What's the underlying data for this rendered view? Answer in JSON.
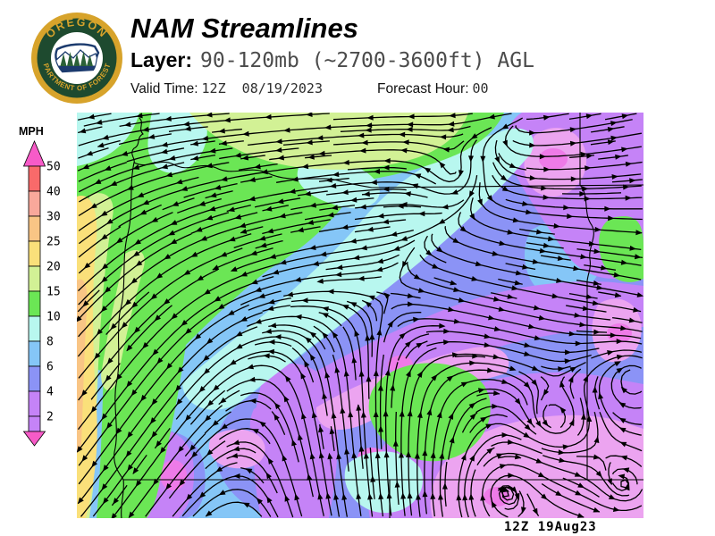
{
  "header": {
    "title": "NAM Streamlines",
    "layer_label": "Layer:",
    "layer_value": "90-120mb (~2700-3600ft) AGL",
    "valid_time_label": "Valid Time:",
    "valid_time_value": "12Z  08/19/2023",
    "forecast_hour_label": "Forecast Hour:",
    "forecast_hour_value": "00"
  },
  "logo": {
    "arc_top_text": "OREGON",
    "arc_bottom_text": "DEPARTMENT OF FORESTRY",
    "ring_gold": "#D7A32B",
    "band_green": "#1E4A2F",
    "emblem_navy": "#1C3B6E",
    "tree_green": "#2A6137"
  },
  "legend": {
    "title": "MPH",
    "ticks": [
      "50",
      "40",
      "30",
      "25",
      "20",
      "15",
      "10",
      "8",
      "6",
      "4",
      "2"
    ],
    "segment_colors": [
      "#F96A6A",
      "#F9A89B",
      "#F9C585",
      "#FAE07A",
      "#D2F195",
      "#6BE655",
      "#B8F7EF",
      "#85C6F7",
      "#8B93F6",
      "#C583F7"
    ],
    "below_min_color": "#C583F7",
    "arrow_color": "#F75BC8"
  },
  "map": {
    "palette": {
      "green": "#6BE655",
      "palegreen": "#D2F195",
      "gold": "#FAE07A",
      "sandy": "#F9C585",
      "cyan": "#B8F7EF",
      "lightblue": "#85C6F7",
      "periwinkle": "#8B93F6",
      "purple": "#C583F7",
      "pink": "#ECA4F0",
      "magenta": "#EE7BE8",
      "stream_line": "#000000",
      "border_line": "#000000"
    }
  },
  "footer": {
    "timestamp": "12Z 19Aug23"
  }
}
